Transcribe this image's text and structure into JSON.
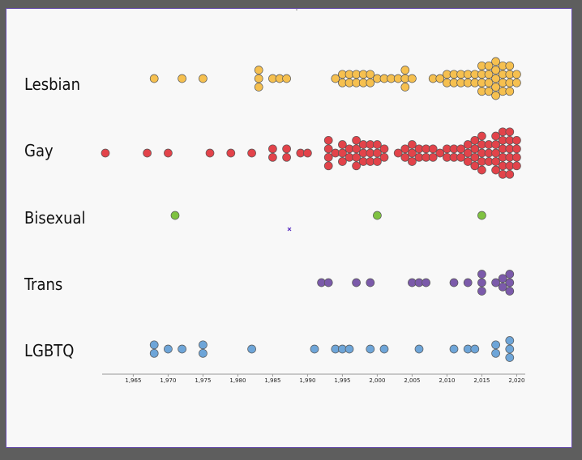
{
  "chart_data": {
    "type": "scatter",
    "title": "",
    "xlabel": "",
    "ylabel": "",
    "xlim": [
      1961,
      2021
    ],
    "grid": false,
    "x_ticks": [
      "1,965",
      "1,970",
      "1,975",
      "1,980",
      "1,985",
      "1,990",
      "1,995",
      "2,000",
      "2,005",
      "2,010",
      "2,015",
      "2,020"
    ],
    "x_tick_values": [
      1965,
      1970,
      1975,
      1980,
      1985,
      1990,
      1995,
      2000,
      2005,
      2010,
      2015,
      2020
    ],
    "categories": [
      "Lesbian",
      "Gay",
      "Bisexual",
      "Trans",
      "LGBTQ"
    ],
    "series": [
      {
        "name": "Lesbian",
        "color": "#f6c04f",
        "values": [
          1968,
          1972,
          1975,
          1983,
          1983,
          1983,
          1985,
          1986,
          1987,
          1994,
          1995,
          1995,
          1996,
          1996,
          1997,
          1997,
          1998,
          1998,
          1999,
          1999,
          2000,
          2001,
          2002,
          2003,
          2004,
          2004,
          2004,
          2005,
          2008,
          2009,
          2010,
          2010,
          2011,
          2011,
          2012,
          2012,
          2013,
          2013,
          2014,
          2014,
          2015,
          2015,
          2015,
          2015,
          2016,
          2016,
          2016,
          2016,
          2017,
          2017,
          2017,
          2017,
          2017,
          2018,
          2018,
          2018,
          2018,
          2019,
          2019,
          2019,
          2019,
          2020,
          2020
        ]
      },
      {
        "name": "Gay",
        "color": "#e2434a",
        "values": [
          1961,
          1967,
          1970,
          1976,
          1979,
          1982,
          1985,
          1985,
          1987,
          1987,
          1989,
          1990,
          1993,
          1993,
          1993,
          1993,
          1994,
          1995,
          1995,
          1995,
          1996,
          1996,
          1997,
          1997,
          1997,
          1997,
          1998,
          1998,
          1998,
          1999,
          1999,
          1999,
          2000,
          2000,
          2000,
          2001,
          2001,
          2003,
          2004,
          2004,
          2005,
          2005,
          2005,
          2006,
          2006,
          2007,
          2007,
          2008,
          2008,
          2009,
          2010,
          2010,
          2011,
          2011,
          2012,
          2012,
          2013,
          2013,
          2013,
          2014,
          2014,
          2014,
          2014,
          2015,
          2015,
          2015,
          2015,
          2015,
          2016,
          2016,
          2016,
          2017,
          2017,
          2017,
          2017,
          2017,
          2018,
          2018,
          2018,
          2018,
          2018,
          2018,
          2019,
          2019,
          2019,
          2019,
          2019,
          2019,
          2020,
          2020,
          2020,
          2020
        ]
      },
      {
        "name": "Bisexual",
        "color": "#7fc241",
        "values": [
          1971,
          2000,
          2015
        ]
      },
      {
        "name": "Trans",
        "color": "#7b5aaa",
        "values": [
          1992,
          1993,
          1997,
          1999,
          2005,
          2006,
          2007,
          2011,
          2013,
          2015,
          2015,
          2015,
          2017,
          2018,
          2018,
          2019,
          2019,
          2019
        ]
      },
      {
        "name": "LGBTQ",
        "color": "#6ea5d8",
        "values": [
          1968,
          1968,
          1970,
          1972,
          1975,
          1975,
          1982,
          1991,
          1994,
          1995,
          1996,
          1999,
          2001,
          2006,
          2011,
          2013,
          2014,
          2017,
          2017,
          2019,
          2019,
          2019
        ]
      }
    ]
  }
}
